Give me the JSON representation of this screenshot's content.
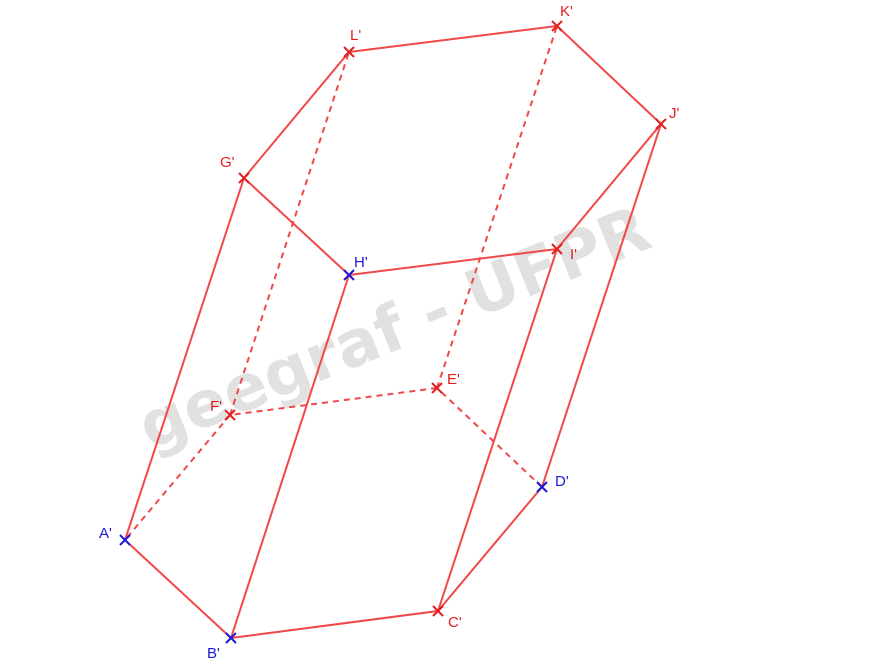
{
  "watermark": "geegraf - UFPR",
  "colors": {
    "edge": "#f04848",
    "red_point": "#e02020",
    "blue_point": "#1a1ad6",
    "watermark": "#dcdcdc"
  },
  "points": [
    {
      "id": "A",
      "label": "A'",
      "color": "blue"
    },
    {
      "id": "B",
      "label": "B'",
      "color": "blue"
    },
    {
      "id": "C",
      "label": "C'",
      "color": "red"
    },
    {
      "id": "D",
      "label": "D'",
      "color": "blue"
    },
    {
      "id": "E",
      "label": "E'",
      "color": "red"
    },
    {
      "id": "F",
      "label": "F'",
      "color": "red"
    },
    {
      "id": "G",
      "label": "G'",
      "color": "red"
    },
    {
      "id": "H",
      "label": "H'",
      "color": "blue"
    },
    {
      "id": "I",
      "label": "I'",
      "color": "red"
    },
    {
      "id": "J",
      "label": "J'",
      "color": "red"
    },
    {
      "id": "K",
      "label": "K'",
      "color": "red"
    },
    {
      "id": "L",
      "label": "L'",
      "color": "red"
    }
  ],
  "edges": [
    {
      "from": "A",
      "to": "B",
      "style": "solid"
    },
    {
      "from": "B",
      "to": "C",
      "style": "solid"
    },
    {
      "from": "C",
      "to": "D",
      "style": "solid"
    },
    {
      "from": "D",
      "to": "E",
      "style": "dashed"
    },
    {
      "from": "E",
      "to": "F",
      "style": "dashed"
    },
    {
      "from": "F",
      "to": "A",
      "style": "dashed"
    },
    {
      "from": "G",
      "to": "H",
      "style": "solid"
    },
    {
      "from": "H",
      "to": "I",
      "style": "solid"
    },
    {
      "from": "I",
      "to": "J",
      "style": "solid"
    },
    {
      "from": "J",
      "to": "K",
      "style": "solid"
    },
    {
      "from": "K",
      "to": "L",
      "style": "solid"
    },
    {
      "from": "L",
      "to": "G",
      "style": "solid"
    },
    {
      "from": "A",
      "to": "G",
      "style": "solid"
    },
    {
      "from": "B",
      "to": "H",
      "style": "solid"
    },
    {
      "from": "C",
      "to": "I",
      "style": "solid"
    },
    {
      "from": "D",
      "to": "J",
      "style": "solid"
    },
    {
      "from": "E",
      "to": "K",
      "style": "dashed"
    },
    {
      "from": "F",
      "to": "L",
      "style": "dashed"
    }
  ]
}
